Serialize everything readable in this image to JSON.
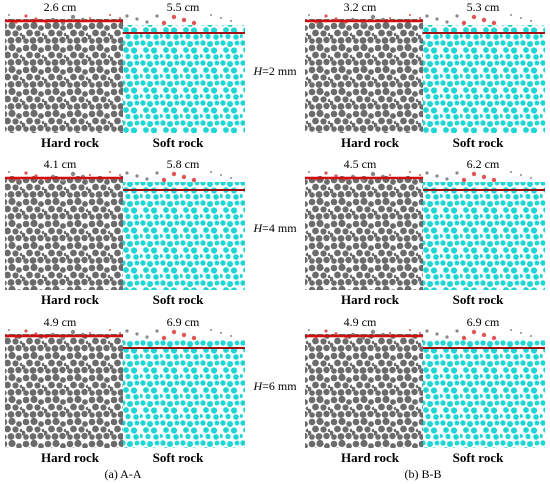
{
  "columns": [
    {
      "caption": "(a) A-A",
      "panels": [
        {
          "hard_value": "2.6 cm",
          "soft_value": "5.5 cm",
          "hard_label": "Hard rock",
          "soft_label": "Soft rock"
        },
        {
          "hard_value": "4.1 cm",
          "soft_value": "5.8 cm",
          "hard_label": "Hard rock",
          "soft_label": "Soft rock"
        },
        {
          "hard_value": "4.9 cm",
          "soft_value": "6.9 cm",
          "hard_label": "Hard rock",
          "soft_label": "Soft rock"
        }
      ]
    },
    {
      "caption": "(b) B-B",
      "panels": [
        {
          "hard_value": "3.2 cm",
          "soft_value": "5.3 cm",
          "hard_label": "Hard rock",
          "soft_label": "Soft rock"
        },
        {
          "hard_value": "4.5 cm",
          "soft_value": "6.2 cm",
          "hard_label": "Hard rock",
          "soft_label": "Soft rock"
        },
        {
          "hard_value": "4.9 cm",
          "soft_value": "6.9 cm",
          "hard_label": "Hard rock",
          "soft_label": "Soft rock"
        }
      ]
    }
  ],
  "rows": [
    {
      "variable": "H",
      "value": "=2 mm"
    },
    {
      "variable": "H",
      "value": "=4 mm"
    },
    {
      "variable": "H",
      "value": "=6 mm"
    }
  ]
}
